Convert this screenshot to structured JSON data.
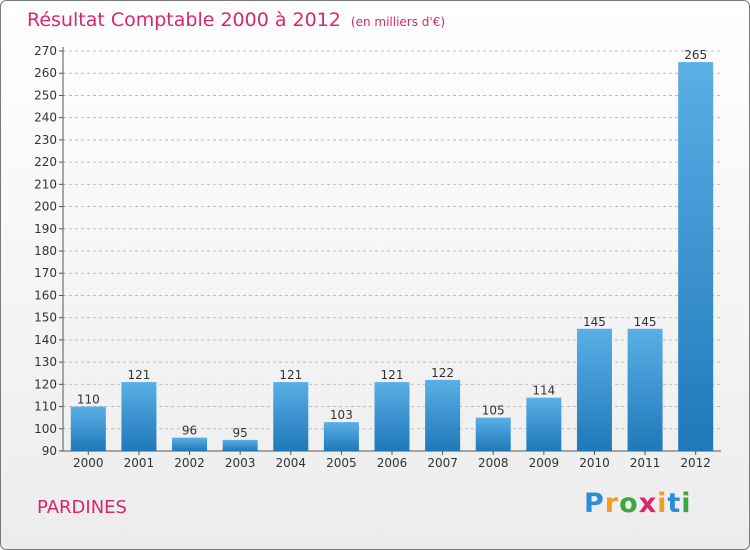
{
  "chart_data": {
    "type": "bar",
    "title": "Résultat Comptable 2000 à 2012",
    "subtitle": "(en milliers d'€)",
    "categories": [
      "2000",
      "2001",
      "2002",
      "2003",
      "2004",
      "2005",
      "2006",
      "2007",
      "2008",
      "2009",
      "2010",
      "2011",
      "2012"
    ],
    "values": [
      110,
      121,
      96,
      95,
      121,
      103,
      121,
      122,
      105,
      114,
      145,
      145,
      265
    ],
    "ylim": [
      90,
      270
    ],
    "ytick_step": 10,
    "grid": true,
    "xlabel": "",
    "ylabel": ""
  },
  "commune": "PARDINES",
  "logo": {
    "text": "Proxiti",
    "letters": [
      "P",
      "r",
      "o",
      "x",
      "i",
      "t",
      "i"
    ],
    "colors": [
      "#2a8fd6",
      "#f0a020",
      "#3aa83a",
      "#d9276a",
      "#f0a020",
      "#2a8fd6",
      "#3aa83a"
    ]
  },
  "colors": {
    "accent": "#d9276a",
    "bar_light": "#5aafe6",
    "bar_dark": "#1f78b8"
  }
}
